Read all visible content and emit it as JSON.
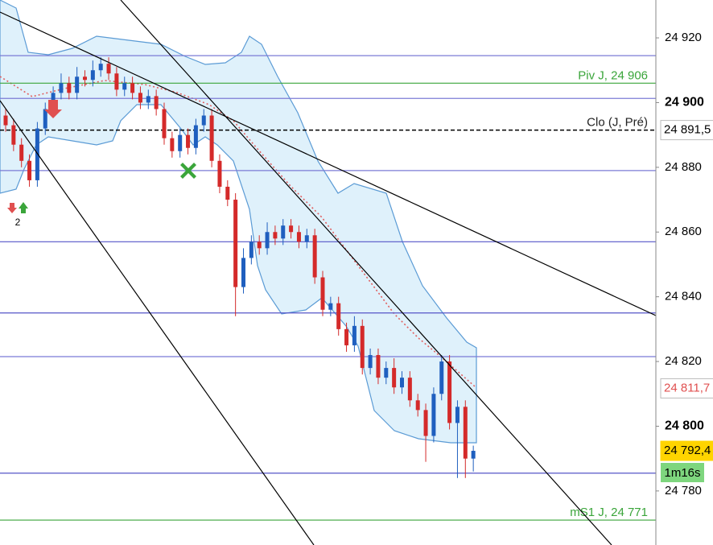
{
  "chart_data": {
    "type": "candlestick",
    "ylim": [
      24763.3,
      24931.7
    ],
    "yticks": [
      {
        "value": 24920,
        "label": "24 920"
      },
      {
        "value": 24900,
        "label": "24 900"
      },
      {
        "value": 24880,
        "label": "24 880"
      },
      {
        "value": 24860,
        "label": "24 860"
      },
      {
        "value": 24840,
        "label": "24 840"
      },
      {
        "value": 24820,
        "label": "24 820"
      },
      {
        "value": 24800,
        "label": "24 800"
      },
      {
        "value": 24780,
        "label": "24 780"
      }
    ],
    "up_color": "#1f5fbf",
    "down_color": "#d42a2a",
    "open": [
      24896,
      24893,
      24887,
      24882,
      24876,
      24892,
      24898,
      24903,
      24906,
      24903,
      24908,
      24907,
      24910,
      24912,
      24909,
      24904,
      24906,
      24903,
      24900,
      24902,
      24898,
      24889,
      24885,
      24890,
      24886,
      24893,
      24896,
      24882,
      24874,
      24870,
      24843,
      24852,
      24857,
      24855,
      24860,
      24858,
      24862,
      24860,
      24857,
      24859,
      24846,
      24836,
      24838,
      24830,
      24825,
      24831,
      24818,
      24822,
      24815,
      24818,
      24812,
      24815,
      24808,
      24805,
      24797,
      24810,
      24820,
      24801,
      24806,
      24790
    ],
    "high": [
      24898,
      24895,
      24889,
      24884,
      24894,
      24900,
      24905,
      24909,
      24908,
      24911,
      24910,
      24913,
      24914,
      24914,
      24911,
      24908,
      24908,
      24905,
      24904,
      24904,
      24900,
      24891,
      24892,
      24892,
      24895,
      24898,
      24898,
      24884,
      24876,
      24872,
      24855,
      24859,
      24859,
      24863,
      24862,
      24864,
      24864,
      24862,
      24861,
      24861,
      24848,
      24840,
      24840,
      24832,
      24834,
      24833,
      24824,
      24824,
      24820,
      24821,
      24817,
      24817,
      24810,
      24807,
      24812,
      24822,
      24822,
      24808,
      24808,
      24794
    ],
    "low": [
      24891,
      24885,
      24880,
      24874,
      24874,
      24890,
      24896,
      24901,
      24901,
      24901,
      24905,
      24905,
      24908,
      24907,
      24902,
      24902,
      24901,
      24898,
      24898,
      24896,
      24887,
      24883,
      24883,
      24884,
      24884,
      24891,
      24880,
      24872,
      24868,
      24834,
      24841,
      24850,
      24853,
      24853,
      24856,
      24856,
      24858,
      24855,
      24855,
      24844,
      24834,
      24834,
      24828,
      24823,
      24823,
      24816,
      24816,
      24813,
      24813,
      24810,
      24810,
      24806,
      24803,
      24789,
      24795,
      24808,
      24799,
      24784,
      24784,
      24786
    ],
    "close": [
      24893,
      24887,
      24882,
      24876,
      24892,
      24898,
      24903,
      24906,
      24903,
      24908,
      24907,
      24910,
      24912,
      24909,
      24904,
      24906,
      24903,
      24900,
      24902,
      24898,
      24889,
      24885,
      24890,
      24886,
      24893,
      24896,
      24882,
      24874,
      24870,
      24843,
      24852,
      24857,
      24855,
      24860,
      24858,
      24862,
      24860,
      24857,
      24859,
      24846,
      24836,
      24838,
      24830,
      24825,
      24831,
      24818,
      24822,
      24815,
      24818,
      24812,
      24815,
      24808,
      24805,
      24797,
      24810,
      24820,
      24801,
      24806,
      24790,
      24792.4
    ],
    "levels": [
      {
        "value": 24914.5,
        "color": "#7b7bd6"
      },
      {
        "value": 24906,
        "color": "#3aa53a",
        "label": "Piv J, 24 906"
      },
      {
        "value": 24901.3,
        "color": "#7b7bd6"
      },
      {
        "value": 24891.5,
        "color": "#000000",
        "dashed": true,
        "label": "Clo (J, Pré)"
      },
      {
        "value": 24879,
        "color": "#7b7bd6"
      },
      {
        "value": 24857,
        "color": "#5555c8"
      },
      {
        "value": 24835,
        "color": "#5555c8"
      },
      {
        "value": 24821.5,
        "color": "#7b7bd6"
      },
      {
        "value": 24785.5,
        "color": "#5555c8"
      },
      {
        "value": 24771,
        "color": "#3aa53a",
        "label": "mS1 J, 24 771"
      }
    ],
    "price_tags": [
      {
        "value": 24891.5,
        "label": "24 891,5",
        "bg": "#ffffff",
        "fg": "#000000"
      },
      {
        "value": 24811.7,
        "label": "24 811,7",
        "bg": "#ffffff",
        "fg": "#e05050"
      },
      {
        "value": 24792.4,
        "label": "24 792,4",
        "bg": "#ffd400",
        "fg": "#000000"
      }
    ],
    "timer": "1m16s",
    "annotation": "2"
  }
}
